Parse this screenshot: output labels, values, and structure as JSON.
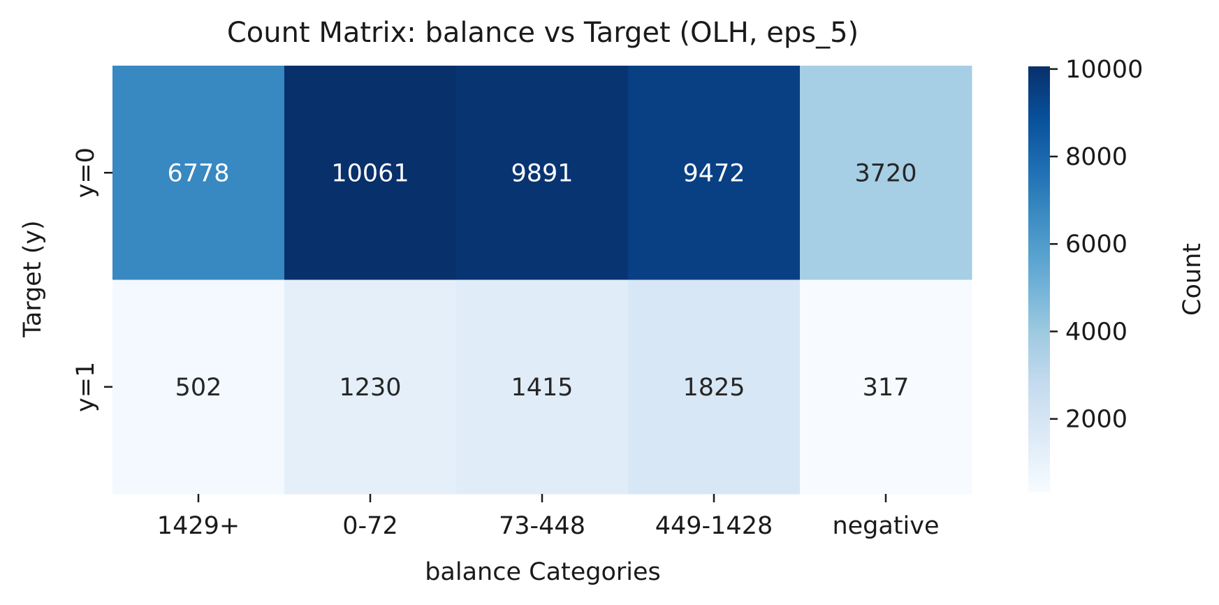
{
  "chart_data": {
    "type": "heatmap",
    "title": "Count Matrix: balance vs Target (OLH, eps_5)",
    "xlabel": "balance Categories",
    "ylabel": "Target (y)",
    "x_categories": [
      "1429+",
      "0-72",
      "73-448",
      "449-1428",
      "negative"
    ],
    "y_categories": [
      "y=0",
      "y=1"
    ],
    "values": [
      [
        6778,
        10061,
        9891,
        9472,
        3720
      ],
      [
        502,
        1230,
        1415,
        1825,
        317
      ]
    ],
    "colorbar": {
      "label": "Count",
      "range": [
        317,
        10061
      ],
      "ticks": [
        "2000",
        "4000",
        "6000",
        "8000",
        "10000"
      ],
      "colormap": "Blues"
    },
    "grid": false,
    "legend": "colorbar-right"
  }
}
